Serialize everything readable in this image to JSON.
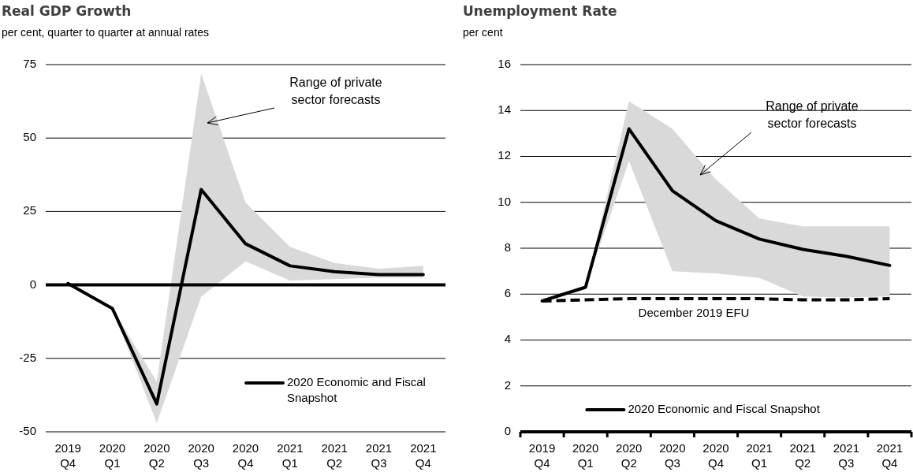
{
  "chart_data": [
    {
      "type": "line",
      "title": "Real GDP Growth",
      "ylabel": "per cent, quarter to quarter at annual rates",
      "categories": [
        "2019 Q4",
        "2020 Q1",
        "2020 Q2",
        "2020 Q3",
        "2020 Q4",
        "2021 Q1",
        "2021 Q2",
        "2021 Q3",
        "2021 Q4"
      ],
      "series": [
        {
          "name": "2020 Economic and Fiscal Snapshot",
          "color": "#000000",
          "values": [
            0.5,
            -8,
            -40.5,
            32.5,
            14,
            6.5,
            4.5,
            3.5,
            3.5
          ],
          "lower": [
            null,
            -8,
            -47,
            -4,
            8,
            1.5,
            2,
            2.5,
            2.5
          ],
          "upper": [
            null,
            -8,
            -33,
            72,
            28,
            13,
            7.5,
            5.5,
            6.5
          ]
        }
      ],
      "ylim": [
        -50,
        75
      ],
      "yticks": [
        -50,
        -25,
        0,
        25,
        50,
        75
      ],
      "grid": "y",
      "legend": "bottom right",
      "annotations": [
        "Range of private sector forecasts"
      ]
    },
    {
      "type": "line",
      "title": "Unemployment Rate",
      "ylabel": "per cent",
      "categories": [
        "2019 Q4",
        "2020 Q1",
        "2020 Q2",
        "2020 Q3",
        "2020 Q4",
        "2021 Q1",
        "2021 Q2",
        "2021 Q3",
        "2021 Q4"
      ],
      "series": [
        {
          "name": "2020 Economic and Fiscal Snapshot",
          "color": "#000000",
          "values": [
            5.7,
            6.3,
            13.2,
            10.5,
            9.2,
            8.4,
            7.95,
            7.65,
            7.25
          ],
          "lower": [
            null,
            6.3,
            11.8,
            7.0,
            6.9,
            6.7,
            5.9,
            5.85,
            5.9
          ],
          "upper": [
            null,
            6.3,
            14.4,
            13.2,
            11.0,
            9.3,
            8.95,
            8.95,
            8.95
          ]
        },
        {
          "color": "#000000",
          "line_style": "dashed",
          "values": [
            5.7,
            5.75,
            5.8,
            5.8,
            5.8,
            5.8,
            5.75,
            5.75,
            5.8
          ]
        }
      ],
      "ylim": [
        0,
        16
      ],
      "yticks": [
        0,
        2,
        4,
        6,
        8,
        10,
        12,
        14,
        16
      ],
      "grid": "y",
      "legend": "bottom",
      "annotations": [
        "Range of private sector forecasts",
        "December 2019 EFU"
      ]
    }
  ]
}
